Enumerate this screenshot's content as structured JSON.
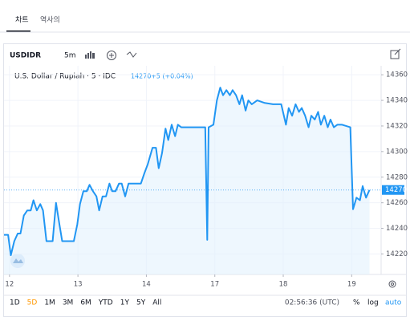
{
  "tabs": [
    "차트",
    "역사의"
  ],
  "toolbar": {
    "symbol": "USDIDR",
    "interval": "5m"
  },
  "chart_data": {
    "type": "line",
    "legend_title": "U.S. Dollar / Rupiah · 5 · IDC",
    "last_price": 14270,
    "change": "+5 (+0.04%)",
    "color": "#2196f3",
    "fill_color": "#e3f2fd",
    "grid": true,
    "x": [
      -0.08,
      -0.02,
      0.02,
      0.07,
      0.12,
      0.16,
      0.21,
      0.26,
      0.31,
      0.35,
      0.4,
      0.45,
      0.49,
      0.54,
      0.59,
      0.63,
      0.68,
      0.73,
      0.77,
      0.94,
      0.99,
      1.03,
      1.08,
      1.13,
      1.17,
      1.22,
      1.27,
      1.31,
      1.36,
      1.41,
      1.46,
      1.5,
      1.55,
      1.6,
      1.64,
      1.69,
      1.74,
      1.92,
      1.97,
      2.02,
      2.09,
      2.14,
      2.18,
      2.23,
      2.28,
      2.32,
      2.37,
      2.42,
      2.46,
      2.51,
      2.56,
      2.86,
      2.89,
      2.91,
      2.98,
      3.03,
      3.08,
      3.12,
      3.17,
      3.22,
      3.26,
      3.31,
      3.36,
      3.4,
      3.45,
      3.49,
      3.54,
      3.62,
      3.73,
      3.85,
      3.97,
      4.04,
      4.08,
      4.13,
      4.18,
      4.23,
      4.27,
      4.32,
      4.37,
      4.41,
      4.46,
      4.51,
      4.55,
      4.6,
      4.65,
      4.69,
      4.74,
      4.79,
      4.86,
      4.98,
      5.02,
      5.07,
      5.12,
      5.16,
      5.21,
      5.26
    ],
    "series": [
      {
        "name": "USDIDR",
        "color": "#2196f3",
        "values": [
          14235,
          14235,
          14219,
          14230,
          14236,
          14236,
          14250,
          14254,
          14254,
          14262,
          14254,
          14259,
          14254,
          14230,
          14230,
          14230,
          14260,
          14243,
          14230,
          14230,
          14243,
          14259,
          14269,
          14269,
          14274,
          14269,
          14265,
          14254,
          14265,
          14265,
          14275,
          14269,
          14269,
          14275,
          14275,
          14265,
          14275,
          14275,
          14283,
          14290,
          14303,
          14303,
          14287,
          14299,
          14318,
          14309,
          14321,
          14312,
          14321,
          14319,
          14319,
          14319,
          14231,
          14319,
          14321,
          14340,
          14350,
          14344,
          14348,
          14344,
          14348,
          14344,
          14337,
          14344,
          14332,
          14340,
          14337,
          14340,
          14338,
          14337,
          14337,
          14321,
          14334,
          14328,
          14337,
          14331,
          14334,
          14328,
          14319,
          14328,
          14325,
          14331,
          14321,
          14328,
          14319,
          14325,
          14319,
          14321,
          14321,
          14319,
          14255,
          14264,
          14262,
          14273,
          14264,
          14270
        ]
      }
    ],
    "xlim": [
      -0.08,
      5.43
    ],
    "xticks": [
      {
        "value": 0,
        "label": "12"
      },
      {
        "value": 1,
        "label": "13"
      },
      {
        "value": 2,
        "label": "14"
      },
      {
        "value": 3,
        "label": "17"
      },
      {
        "value": 4,
        "label": "18"
      },
      {
        "value": 5,
        "label": "19"
      }
    ],
    "ylim": [
      14204,
      14367
    ],
    "yticks": [
      14220,
      14240,
      14260,
      14280,
      14300,
      14320,
      14340,
      14360
    ]
  },
  "bottom_bar": {
    "ranges": [
      "1D",
      "5D",
      "1M",
      "3M",
      "6M",
      "YTD",
      "1Y",
      "5Y",
      "All"
    ],
    "active_range": "5D",
    "time": "02:56:36 (UTC)",
    "percent": "%",
    "log": "log",
    "auto": "auto"
  }
}
